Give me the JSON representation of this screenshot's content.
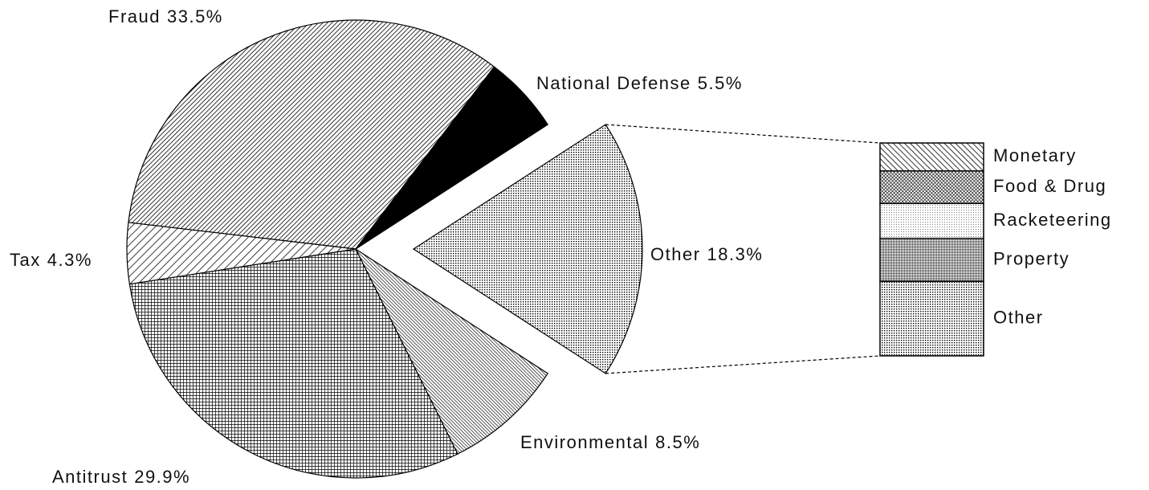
{
  "chart_data": {
    "type": "pie",
    "categories": [
      "Fraud",
      "National Defense",
      "Other",
      "Environmental",
      "Antitrust",
      "Tax"
    ],
    "values": [
      33.5,
      5.5,
      18.3,
      8.5,
      29.9,
      4.3
    ],
    "value_labels": [
      "33.5%",
      "5.5%",
      "18.3%",
      "8.5%",
      "29.9%",
      "4.3%"
    ],
    "exploded": "Other",
    "breakdown": {
      "categories": [
        "Monetary",
        "Food & Drug",
        "Racketeering",
        "Property",
        "Other"
      ],
      "values": [
        2.4,
        2.8,
        3.0,
        3.7,
        6.4
      ]
    }
  }
}
